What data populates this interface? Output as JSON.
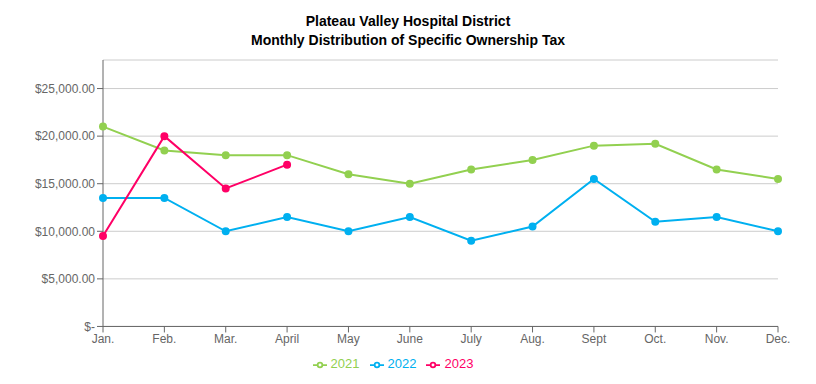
{
  "chart_data": {
    "type": "line",
    "title": "Plateau Valley Hospital District",
    "subtitle": "Monthly Distribution of Specific Ownership Tax",
    "categories": [
      "Jan.",
      "Feb.",
      "Mar.",
      "April",
      "May",
      "June",
      "July",
      "Aug.",
      "Sept",
      "Oct.",
      "Nov.",
      "Dec."
    ],
    "series": [
      {
        "name": "2021",
        "color": "#92d050",
        "values": [
          21000,
          18500,
          18000,
          18000,
          16000,
          15000,
          16500,
          17500,
          19000,
          19200,
          16500,
          15500
        ]
      },
      {
        "name": "2022",
        "color": "#00b0f0",
        "values": [
          13500,
          13500,
          10000,
          11500,
          10000,
          11500,
          9000,
          10500,
          15500,
          11000,
          11500,
          10000
        ]
      },
      {
        "name": "2023",
        "color": "#ff0066",
        "values": [
          9500,
          20000,
          14500,
          17000,
          null,
          null,
          null,
          null,
          null,
          null,
          null,
          null
        ]
      }
    ],
    "ylim": [
      0,
      28000
    ],
    "yticks": [
      {
        "value": 0,
        "label": "$-"
      },
      {
        "value": 5000,
        "label": "$5,000.00"
      },
      {
        "value": 10000,
        "label": "$10,000.00"
      },
      {
        "value": 15000,
        "label": "$15,000.00"
      },
      {
        "value": 20000,
        "label": "$20,000.00"
      },
      {
        "value": 25000,
        "label": "$25,000.00"
      }
    ],
    "grid": true,
    "legend": "bottom",
    "marker": "circle"
  }
}
